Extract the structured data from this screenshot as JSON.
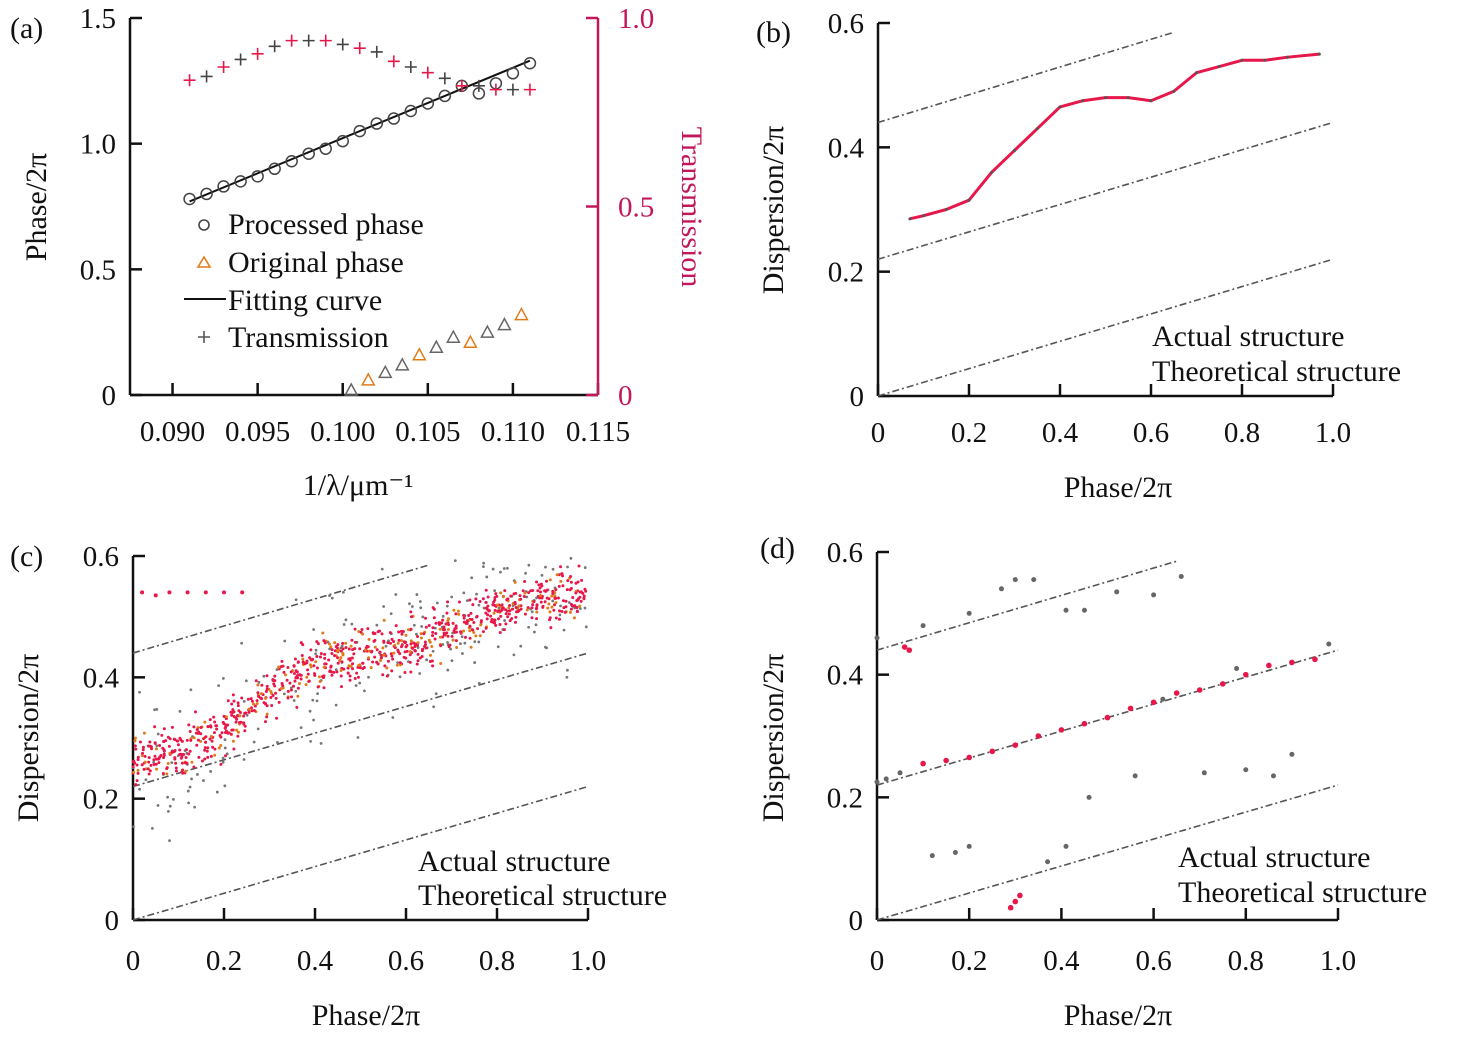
{
  "colors": {
    "actual": "#e8174a",
    "theoretical": "#555555",
    "original": "#e07b1a",
    "processed": "#444444",
    "transmission_axis": "#c2185b"
  },
  "chart_data": [
    {
      "panel": "(a)",
      "type": "scatter",
      "xlabel": "1/λ/μm⁻¹",
      "ylabel": "Phase/2π",
      "y2label": "Transmission",
      "xlim": [
        0.0875,
        0.115
      ],
      "ylim": [
        0,
        1.5
      ],
      "y2lim": [
        0,
        1.0
      ],
      "xticks": [
        "0.090",
        "0.095",
        "0.100",
        "0.105",
        "0.110",
        "0.115"
      ],
      "xtick_values": [
        0.09,
        0.095,
        0.1,
        0.105,
        0.11,
        0.115
      ],
      "yticks": [
        "0",
        "0.5",
        "1.0",
        "1.5"
      ],
      "ytick_values": [
        0,
        0.5,
        1.0,
        1.5
      ],
      "y2ticks": [
        "0",
        "0.5",
        "1.0"
      ],
      "y2tick_values": [
        0,
        0.5,
        1.0
      ],
      "legend": [
        "Processed phase",
        "Original phase",
        "Fitting curve",
        "Transmission"
      ],
      "legend_placement": "center-left",
      "series": [
        {
          "name": "Processed phase",
          "x": [
            0.091,
            0.092,
            0.093,
            0.094,
            0.095,
            0.096,
            0.097,
            0.098,
            0.099,
            0.1,
            0.101,
            0.102,
            0.103,
            0.104,
            0.105,
            0.106,
            0.107,
            0.108,
            0.109,
            0.11,
            0.111
          ],
          "y": [
            0.78,
            0.8,
            0.83,
            0.85,
            0.87,
            0.9,
            0.93,
            0.96,
            0.98,
            1.01,
            1.05,
            1.08,
            1.1,
            1.13,
            1.16,
            1.19,
            1.23,
            1.2,
            1.24,
            1.28,
            1.32
          ]
        },
        {
          "name": "Original phase",
          "x": [
            0.1005,
            0.1015,
            0.1025,
            0.1035,
            0.1045,
            0.1055,
            0.1065,
            0.1075,
            0.1085,
            0.1095,
            0.1105
          ],
          "y": [
            0.02,
            0.06,
            0.09,
            0.12,
            0.16,
            0.19,
            0.23,
            0.21,
            0.25,
            0.28,
            0.32
          ]
        },
        {
          "name": "Fitting curve",
          "x": [
            0.091,
            0.111
          ],
          "y": [
            0.77,
            1.33
          ]
        },
        {
          "name": "Transmission",
          "axis": "right",
          "x": [
            0.091,
            0.092,
            0.093,
            0.094,
            0.095,
            0.096,
            0.097,
            0.098,
            0.099,
            0.1,
            0.101,
            0.102,
            0.103,
            0.104,
            0.105,
            0.106,
            0.107,
            0.108,
            0.109,
            0.11,
            0.111
          ],
          "y": [
            0.835,
            0.845,
            0.87,
            0.89,
            0.905,
            0.925,
            0.94,
            0.94,
            0.94,
            0.93,
            0.92,
            0.91,
            0.885,
            0.87,
            0.855,
            0.84,
            0.82,
            0.82,
            0.81,
            0.81,
            0.81
          ]
        }
      ]
    },
    {
      "panel": "(b)",
      "type": "scatter",
      "xlabel": "Phase/2π",
      "ylabel": "Dispersion/2π",
      "xlim": [
        0,
        1.0
      ],
      "ylim": [
        0,
        0.6
      ],
      "xticks": [
        "0",
        "0.2",
        "0.4",
        "0.6",
        "0.8",
        "1.0"
      ],
      "xtick_values": [
        0,
        0.2,
        0.4,
        0.6,
        0.8,
        1.0
      ],
      "yticks": [
        "0",
        "0.2",
        "0.4",
        "0.6"
      ],
      "ytick_values": [
        0,
        0.2,
        0.4,
        0.6
      ],
      "legend": [
        "Actual structure",
        "Theoretical structure"
      ],
      "legend_placement": "bottom-right",
      "theoretical_lines": [
        {
          "x": [
            0,
            1.0
          ],
          "y": [
            0,
            0.22
          ]
        },
        {
          "x": [
            0,
            1.0
          ],
          "y": [
            0.22,
            0.44
          ]
        },
        {
          "x": [
            0,
            0.65
          ],
          "y": [
            0.44,
            0.585
          ]
        }
      ],
      "actual": {
        "x": [
          0.07,
          0.1,
          0.15,
          0.2,
          0.25,
          0.3,
          0.35,
          0.4,
          0.45,
          0.5,
          0.55,
          0.6,
          0.65,
          0.7,
          0.75,
          0.8,
          0.85,
          0.9,
          0.97
        ],
        "y": [
          0.285,
          0.29,
          0.3,
          0.315,
          0.36,
          0.395,
          0.43,
          0.465,
          0.475,
          0.48,
          0.48,
          0.475,
          0.49,
          0.52,
          0.53,
          0.54,
          0.54,
          0.545,
          0.55
        ]
      }
    },
    {
      "panel": "(c)",
      "type": "scatter",
      "xlabel": "Phase/2π",
      "ylabel": "Dispersion/2π",
      "xlim": [
        0,
        1.0
      ],
      "ylim": [
        0,
        0.6
      ],
      "xticks": [
        "0",
        "0.2",
        "0.4",
        "0.6",
        "0.8",
        "1.0"
      ],
      "xtick_values": [
        0,
        0.2,
        0.4,
        0.6,
        0.8,
        1.0
      ],
      "yticks": [
        "0",
        "0.2",
        "0.4",
        "0.6"
      ],
      "ytick_values": [
        0,
        0.2,
        0.4,
        0.6
      ],
      "legend": [
        "Actual structure",
        "Theoretical structure"
      ],
      "legend_placement": "bottom-right",
      "theoretical_lines": [
        {
          "x": [
            0,
            1.0
          ],
          "y": [
            0,
            0.22
          ]
        },
        {
          "x": [
            0,
            1.0
          ],
          "y": [
            0.22,
            0.44
          ]
        },
        {
          "x": [
            0,
            0.65
          ],
          "y": [
            0.44,
            0.585
          ]
        }
      ],
      "actual_band": {
        "x": [
          0,
          0.1,
          0.2,
          0.3,
          0.4,
          0.5,
          0.6,
          0.7,
          0.8,
          0.9,
          1.0
        ],
        "y": [
          0.26,
          0.28,
          0.31,
          0.37,
          0.42,
          0.44,
          0.45,
          0.48,
          0.51,
          0.53,
          0.54
        ],
        "spread": 0.06
      },
      "actual_outliers": {
        "x": [
          0.02,
          0.05,
          0.08,
          0.12,
          0.16,
          0.2,
          0.24
        ],
        "y": [
          0.54,
          0.535,
          0.54,
          0.54,
          0.54,
          0.54,
          0.54
        ]
      },
      "theoretical_scatter_spread": 0.12
    },
    {
      "panel": "(d)",
      "type": "scatter",
      "xlabel": "Phase/2π",
      "ylabel": "Dispersion/2π",
      "xlim": [
        0,
        1.0
      ],
      "ylim": [
        0,
        0.6
      ],
      "xticks": [
        "0",
        "0.2",
        "0.4",
        "0.6",
        "0.8",
        "1.0"
      ],
      "xtick_values": [
        0,
        0.2,
        0.4,
        0.6,
        0.8,
        1.0
      ],
      "yticks": [
        "0",
        "0.2",
        "0.4",
        "0.6"
      ],
      "ytick_values": [
        0,
        0.2,
        0.4,
        0.6
      ],
      "legend": [
        "Actual structure",
        "Theoretical structure"
      ],
      "legend_placement": "bottom-right",
      "theoretical_lines": [
        {
          "x": [
            0,
            1.0
          ],
          "y": [
            0,
            0.22
          ]
        },
        {
          "x": [
            0,
            1.0
          ],
          "y": [
            0.22,
            0.44
          ]
        },
        {
          "x": [
            0,
            0.65
          ],
          "y": [
            0.44,
            0.585
          ]
        }
      ],
      "actual": {
        "x": [
          0.06,
          0.07,
          0.29,
          0.3,
          0.31,
          0.1,
          0.15,
          0.2,
          0.25,
          0.3,
          0.35,
          0.4,
          0.45,
          0.5,
          0.55,
          0.6,
          0.65,
          0.7,
          0.75,
          0.8,
          0.85,
          0.9,
          0.95
        ],
        "y": [
          0.445,
          0.44,
          0.02,
          0.03,
          0.04,
          0.255,
          0.26,
          0.265,
          0.275,
          0.285,
          0.3,
          0.31,
          0.32,
          0.33,
          0.345,
          0.355,
          0.37,
          0.375,
          0.385,
          0.4,
          0.415,
          0.42,
          0.425
        ]
      },
      "theoretical_points": {
        "x": [
          0.0,
          0.02,
          0.05,
          0.12,
          0.17,
          0.2,
          0.41,
          0.46,
          0.56,
          0.71,
          0.8,
          0.86,
          0.9,
          0.0,
          0.1,
          0.2,
          0.27,
          0.3,
          0.34,
          0.41,
          0.45,
          0.52,
          0.6,
          0.66,
          0.37,
          0.5,
          0.62,
          0.78,
          0.98
        ],
        "y": [
          0.225,
          0.23,
          0.24,
          0.105,
          0.11,
          0.12,
          0.12,
          0.2,
          0.235,
          0.24,
          0.245,
          0.235,
          0.27,
          0.46,
          0.48,
          0.5,
          0.54,
          0.555,
          0.555,
          0.505,
          0.505,
          0.535,
          0.53,
          0.56,
          0.095,
          0.33,
          0.36,
          0.41,
          0.45
        ]
      }
    }
  ],
  "panel_labels": [
    "(a)",
    "(b)",
    "(c)",
    "(d)"
  ]
}
